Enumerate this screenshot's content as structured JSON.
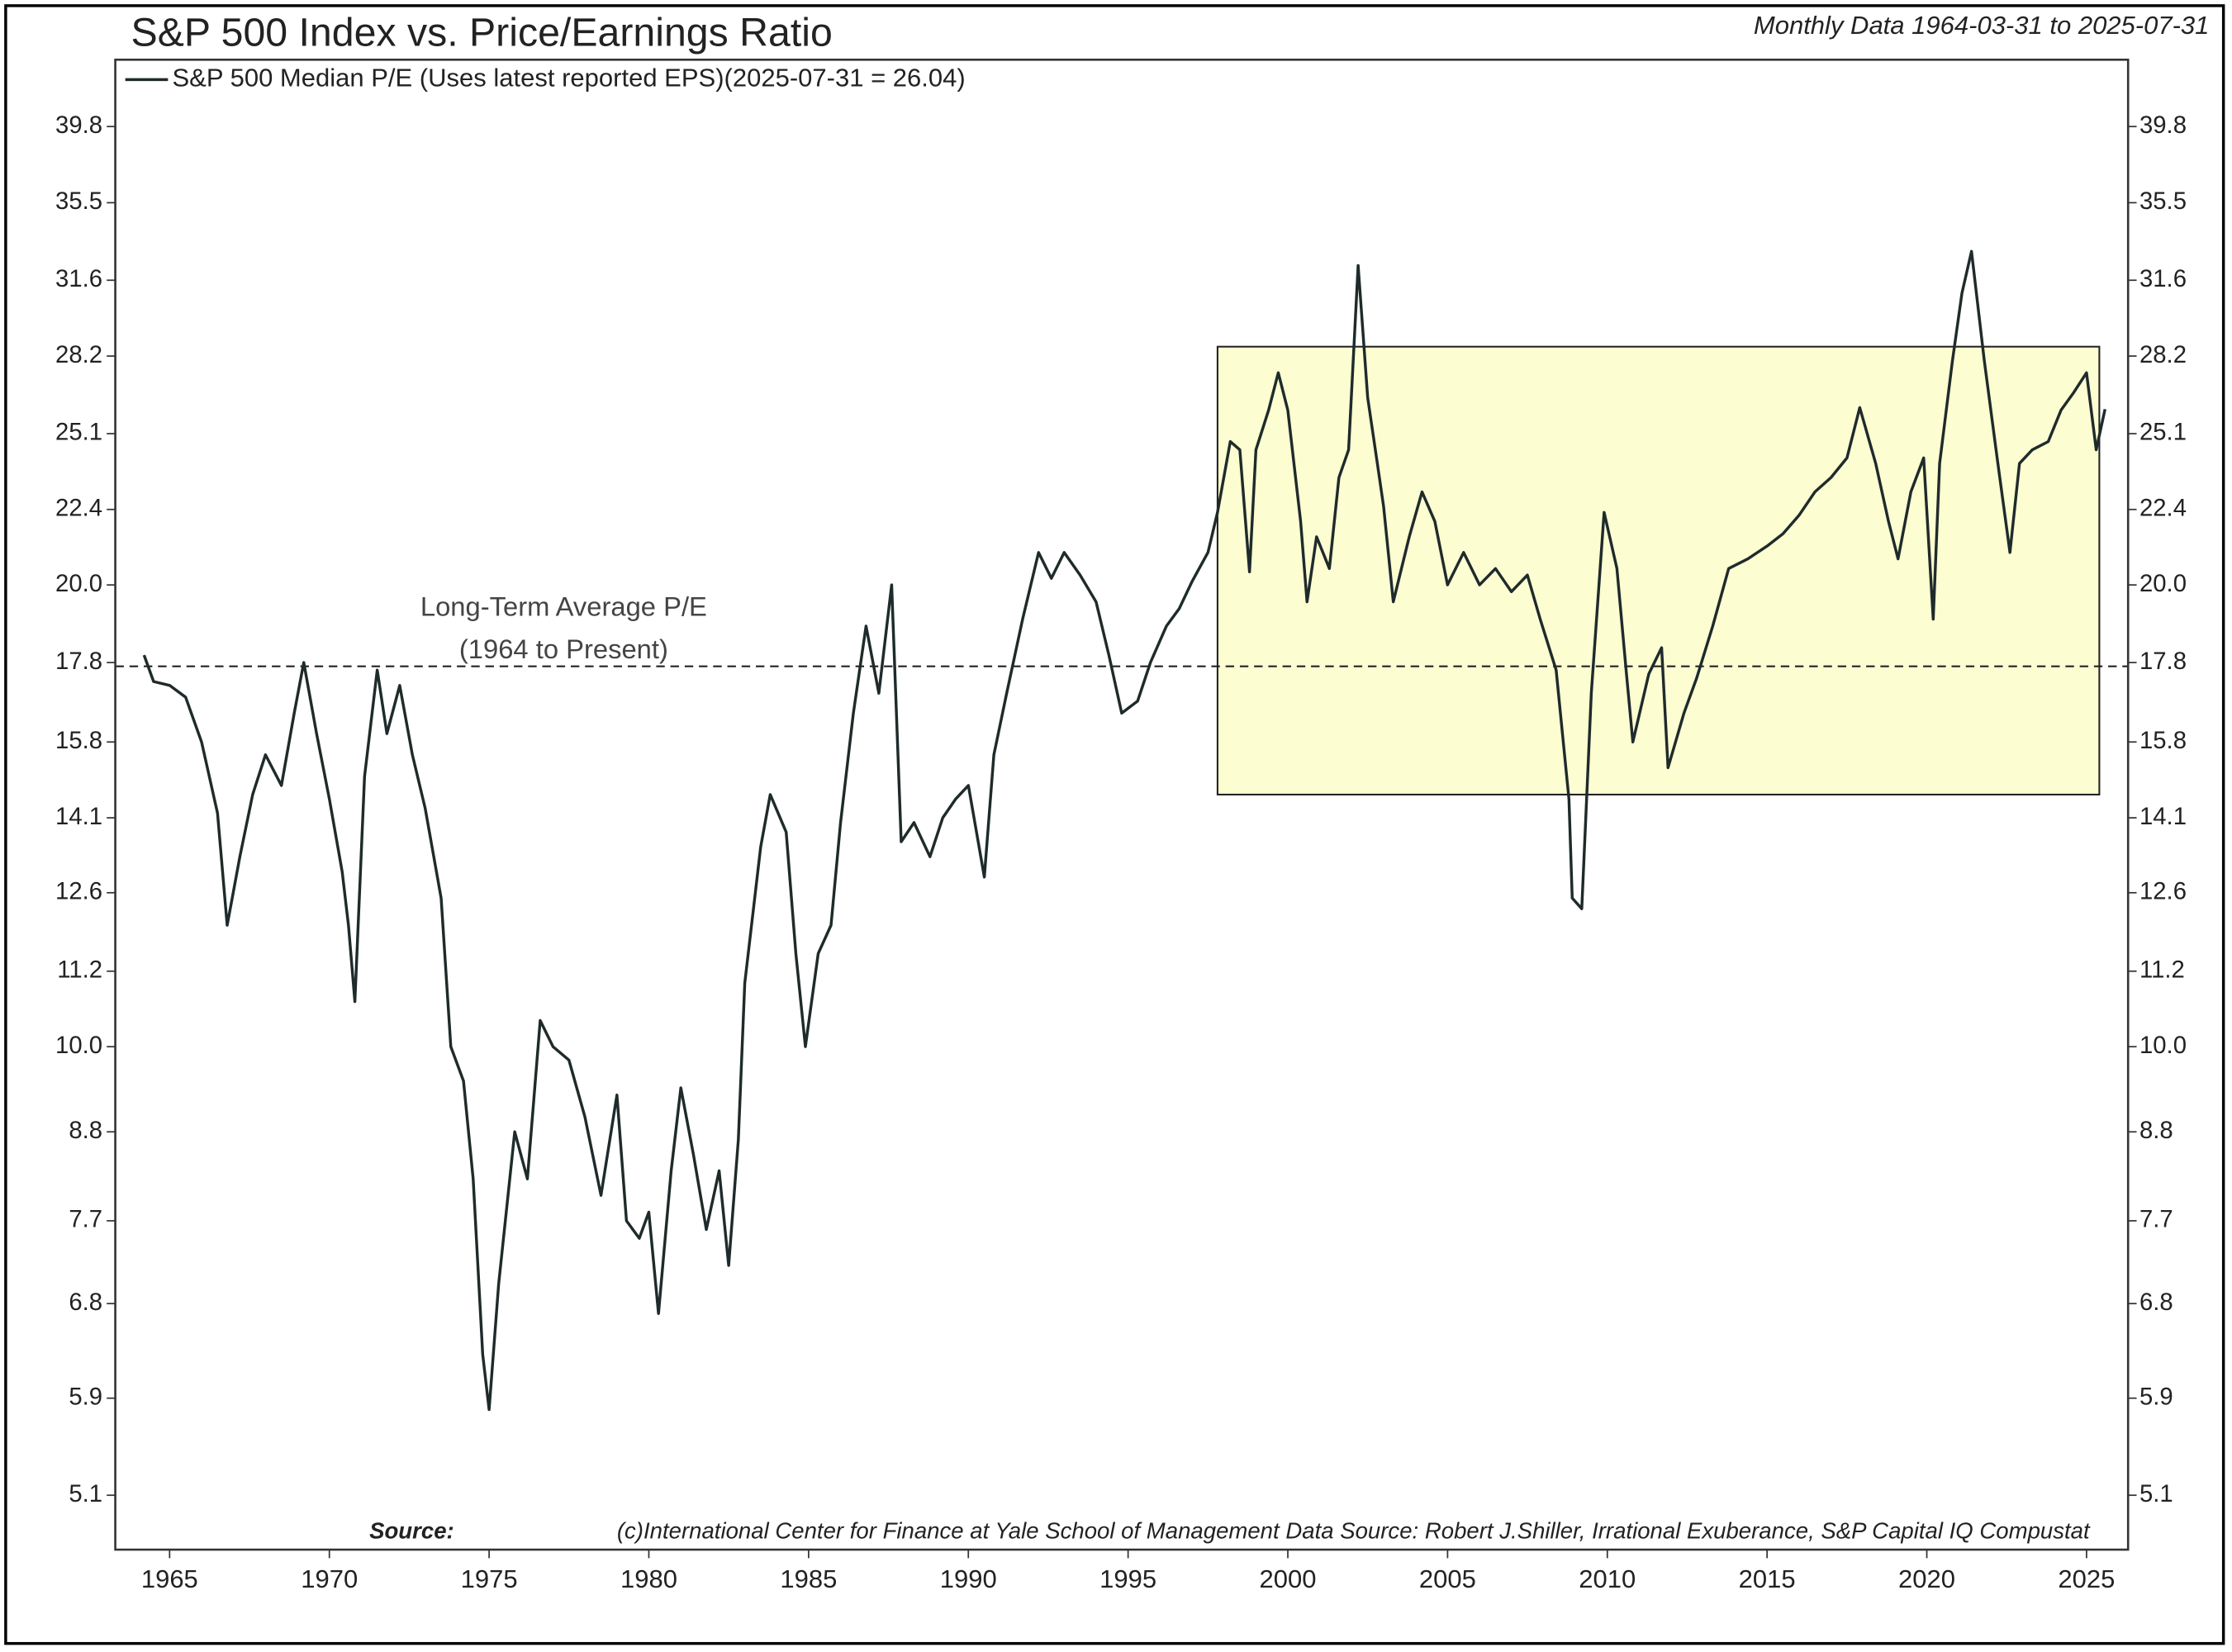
{
  "chart_data": {
    "type": "line",
    "title": "S&P 500 Index vs. Price/Earnings Ratio",
    "subtitle": "Monthly Data 1964-03-31 to 2025-07-31",
    "source_label": "Source:",
    "source": "(c)International Center for Finance at Yale School of Management Data Source: Robert J.Shiller, Irrational Exuberance, S&P Capital IQ Compustat",
    "annotation": [
      "Long-Term Average P/E",
      "(1964 to Present)"
    ],
    "average": 17.7,
    "highlight_box": {
      "x": [
        1997.8,
        2025.4
      ],
      "y": [
        14.6,
        28.6
      ],
      "color": "#fdfdd2"
    },
    "log_scale": true,
    "legend": "top-left",
    "xlim": [
      1963.3,
      2026.3
    ],
    "xticks": [
      1965,
      1970,
      1975,
      1980,
      1985,
      1990,
      1995,
      2000,
      2005,
      2010,
      2015,
      2020,
      2025
    ],
    "ylim": [
      4.7,
      44
    ],
    "yticks": [
      5.1,
      5.9,
      6.8,
      7.7,
      8.8,
      {
        "value": 10,
        "label": "10.0"
      },
      11.2,
      12.6,
      14.1,
      15.8,
      17.8,
      {
        "value": 20,
        "label": "20.0"
      },
      22.4,
      25.1,
      28.2,
      31.6,
      35.5,
      39.8
    ],
    "x": [
      1964.2,
      1964.5,
      1965,
      1965.5,
      1966,
      1966.5,
      1966.8,
      1967.2,
      1967.6,
      1968,
      1968.5,
      1968.9,
      1969.2,
      1969.6,
      1970,
      1970.4,
      1970.6,
      1970.8,
      1971.1,
      1971.5,
      1971.8,
      1972.2,
      1972.6,
      1973,
      1973.5,
      1973.8,
      1974.2,
      1974.5,
      1974.8,
      1975,
      1975.3,
      1975.8,
      1976.2,
      1976.6,
      1977,
      1977.5,
      1978,
      1978.5,
      1979,
      1979.3,
      1979.7,
      1980,
      1980.3,
      1980.7,
      1981,
      1981.4,
      1981.8,
      1982.2,
      1982.5,
      1982.8,
      1983,
      1983.5,
      1983.8,
      1984.3,
      1984.6,
      1984.9,
      1985.3,
      1985.7,
      1986,
      1986.4,
      1986.8,
      1987.2,
      1987.6,
      1987.9,
      1988.3,
      1988.8,
      1989.2,
      1989.6,
      1990,
      1990.5,
      1990.8,
      1991.2,
      1991.7,
      1992.2,
      1992.6,
      1993,
      1993.5,
      1994,
      1994.4,
      1994.8,
      1995.3,
      1995.7,
      1996.2,
      1996.6,
      1997,
      1997.5,
      1997.8,
      1998.2,
      1998.5,
      1998.8,
      1999,
      1999.4,
      1999.7,
      2000,
      2000.4,
      2000.6,
      2000.9,
      2001.3,
      2001.6,
      2001.9,
      2002.2,
      2002.5,
      2002.8,
      2003,
      2003.3,
      2003.8,
      2004.2,
      2004.6,
      2005,
      2005.5,
      2006,
      2006.5,
      2007,
      2007.5,
      2007.9,
      2008.4,
      2008.8,
      2008.9,
      2009.2,
      2009.5,
      2009.9,
      2010.3,
      2010.6,
      2010.8,
      2011.3,
      2011.7,
      2011.9,
      2012.4,
      2012.8,
      2013.3,
      2013.8,
      2014.4,
      2015,
      2015.5,
      2016,
      2016.5,
      2017,
      2017.5,
      2017.9,
      2018.4,
      2018.8,
      2019.1,
      2019.5,
      2019.9,
      2020.2,
      2020.4,
      2020.8,
      2021.1,
      2021.4,
      2021.8,
      2022.2,
      2022.6,
      2022.9,
      2023.3,
      2023.8,
      2024.2,
      2024.6,
      2025,
      2025.3,
      2025.58
    ],
    "series": [
      {
        "name": "S&P 500 Median P/E (Uses latest reported EPS)(2025-07-31 = 26.04)",
        "color": "#1f2b2b",
        "values": [
          18.0,
          17.3,
          17.2,
          16.9,
          15.8,
          14.2,
          12.0,
          13.3,
          14.6,
          15.5,
          14.8,
          16.5,
          17.8,
          16.0,
          14.5,
          13.0,
          12.0,
          10.7,
          15.0,
          17.6,
          16.0,
          17.2,
          15.5,
          14.3,
          12.5,
          10.0,
          9.5,
          8.2,
          6.3,
          5.8,
          7.0,
          8.8,
          8.2,
          10.4,
          10.0,
          9.8,
          9.0,
          8.0,
          9.3,
          7.7,
          7.5,
          7.8,
          6.7,
          8.3,
          9.4,
          8.5,
          7.6,
          8.3,
          7.2,
          8.7,
          11.0,
          13.5,
          14.6,
          13.8,
          11.5,
          10.0,
          11.5,
          12.0,
          14.0,
          16.5,
          18.8,
          17.0,
          20.0,
          13.6,
          14.0,
          13.3,
          14.1,
          14.5,
          14.8,
          12.9,
          15.5,
          17.0,
          19.0,
          21.0,
          20.2,
          21.0,
          20.3,
          19.5,
          18.0,
          16.5,
          16.8,
          17.8,
          18.8,
          19.3,
          20.1,
          21.0,
          22.3,
          24.8,
          24.5,
          20.4,
          24.5,
          26.0,
          27.5,
          26.0,
          22.0,
          19.5,
          21.5,
          20.5,
          23.5,
          24.5,
          32.3,
          26.5,
          24.0,
          22.5,
          19.5,
          21.5,
          23.0,
          22.0,
          20.0,
          21.0,
          20.0,
          20.5,
          19.8,
          20.3,
          19.0,
          17.6,
          14.5,
          12.5,
          12.3,
          17.0,
          22.3,
          20.5,
          17.5,
          15.8,
          17.5,
          18.2,
          15.2,
          16.5,
          17.4,
          18.8,
          20.5,
          20.8,
          21.2,
          21.6,
          22.2,
          23.0,
          23.5,
          24.2,
          26.1,
          24.0,
          22.0,
          20.8,
          23.0,
          24.2,
          19.0,
          24.0,
          28.0,
          31.0,
          33.0,
          28.0,
          24.2,
          21.0,
          24.0,
          24.5,
          24.8,
          26.0,
          26.7,
          27.5,
          24.5,
          26.04
        ]
      }
    ]
  }
}
